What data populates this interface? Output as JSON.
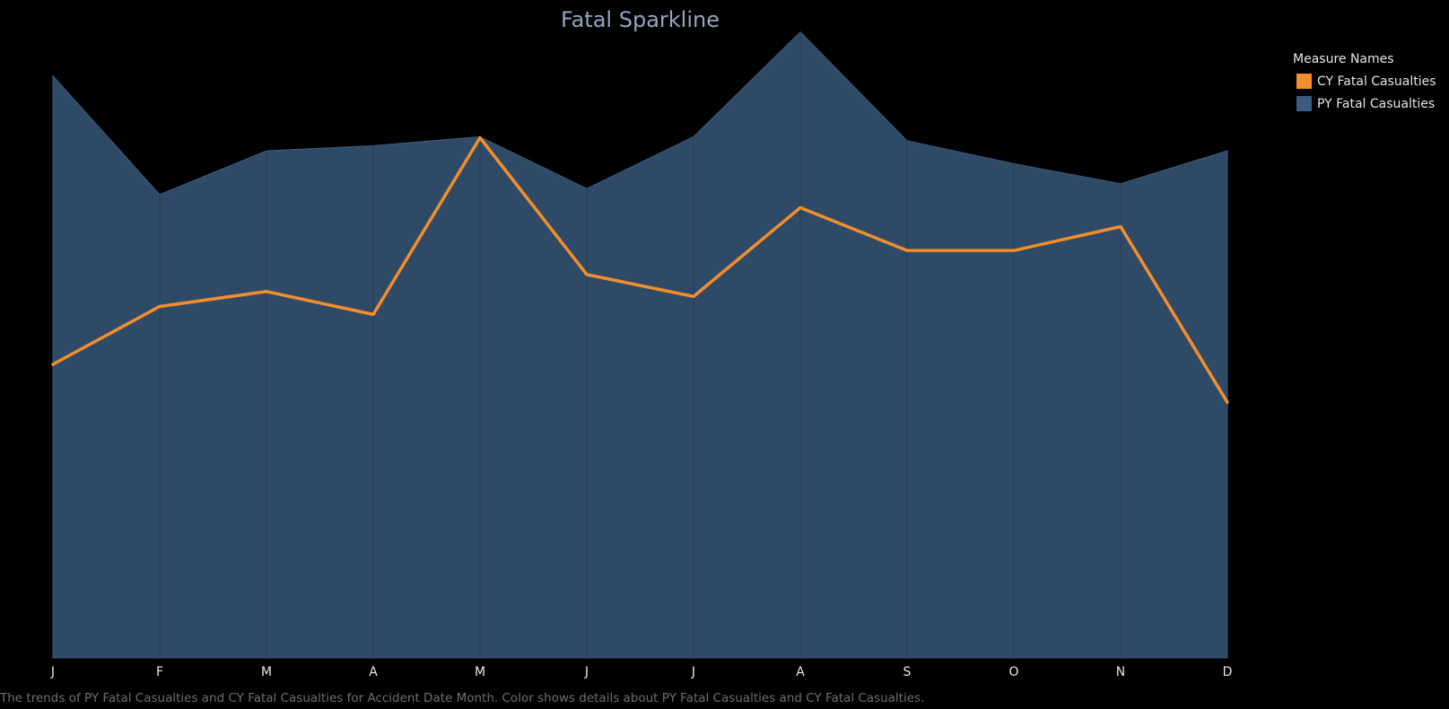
{
  "chart_data": {
    "type": "area",
    "title": "Fatal Sparkline",
    "categories": [
      "J",
      "F",
      "M",
      "A",
      "M",
      "J",
      "J",
      "A",
      "S",
      "O",
      "N",
      "D"
    ],
    "series": [
      {
        "name": "PY Fatal Casualties",
        "type": "area",
        "color": "#2f4a67",
        "values": [
          583,
          464,
          508,
          513,
          522,
          470,
          522,
          627,
          518,
          495,
          475,
          508
        ]
      },
      {
        "name": "CY Fatal Casualties",
        "type": "line",
        "color": "#f28e2b",
        "values": [
          294,
          352,
          367,
          344,
          521,
          384,
          362,
          451,
          408,
          408,
          432,
          256
        ]
      }
    ],
    "ylim": [
      0,
      650
    ],
    "grid": false,
    "legend": {
      "title": "Measure Names",
      "position": "right",
      "items": [
        {
          "label": "CY Fatal Casualties",
          "color": "#f28e2b"
        },
        {
          "label": "PY Fatal Casualties",
          "color": "#3b5b80"
        }
      ]
    }
  },
  "caption": "The trends of PY Fatal Casualties and CY Fatal Casualties for Accident Date Month.  Color shows details about PY Fatal Casualties and CY Fatal Casualties."
}
